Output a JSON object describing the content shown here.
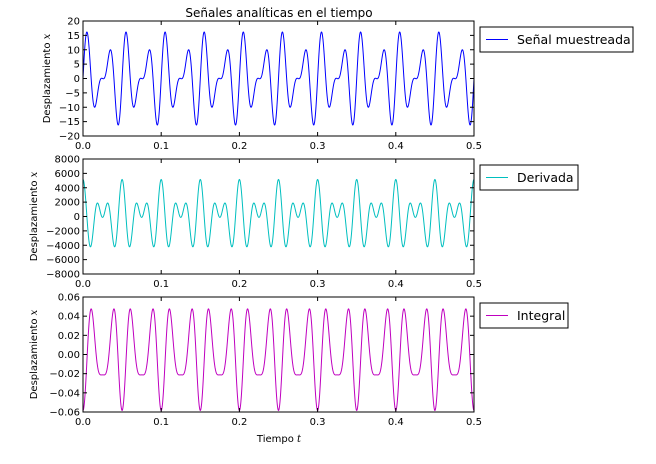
{
  "chart_data": [
    {
      "type": "line",
      "title": "Señales analíticas en el tiempo",
      "ylabel": "Desplazamiento",
      "ylabel_var": "x",
      "xlabel": "",
      "xlim": [
        0.0,
        0.5
      ],
      "ylim": [
        -20,
        20
      ],
      "xticks": [
        0.0,
        0.1,
        0.2,
        0.3,
        0.4,
        0.5
      ],
      "xtick_labels": [
        "0.0",
        "0.1",
        "0.2",
        "0.3",
        "0.4",
        "0.5"
      ],
      "yticks": [
        -20,
        -15,
        -10,
        -5,
        0,
        5,
        10,
        15,
        20
      ],
      "ytick_labels": [
        "−20",
        "−15",
        "−10",
        "−5",
        "0",
        "5",
        "10",
        "15",
        "20"
      ],
      "legend": "outside-right-top",
      "grid": false,
      "series": [
        {
          "name": "Señal muestreada",
          "color": "#0000ff",
          "formula": "10*sin(2*pi*40*t) + 7*sin(2*pi*60*t)",
          "components": [
            [
              10,
              40
            ],
            [
              7,
              60
            ]
          ],
          "kind": "sin"
        }
      ]
    },
    {
      "type": "line",
      "title": "",
      "ylabel": "Desplazamiento",
      "ylabel_var": "x",
      "xlabel": "",
      "xlim": [
        0.0,
        0.5
      ],
      "ylim": [
        -8000,
        8000
      ],
      "xticks": [
        0.0,
        0.1,
        0.2,
        0.3,
        0.4,
        0.5
      ],
      "xtick_labels": [
        "0.0",
        "0.1",
        "0.2",
        "0.3",
        "0.4",
        "0.5"
      ],
      "yticks": [
        -8000,
        -6000,
        -4000,
        -2000,
        0,
        2000,
        4000,
        6000,
        8000
      ],
      "ytick_labels": [
        "−8000",
        "−6000",
        "−4000",
        "−2000",
        "0",
        "2000",
        "4000",
        "6000",
        "8000"
      ],
      "legend": "outside-right-top",
      "grid": false,
      "series": [
        {
          "name": "Derivada",
          "color": "#00bfbf",
          "formula": "derivative of the sampled signal",
          "components": [
            [
              10,
              40
            ],
            [
              7,
              60
            ]
          ],
          "kind": "cos-derivative"
        }
      ]
    },
    {
      "type": "line",
      "title": "",
      "ylabel": "Desplazamiento",
      "ylabel_var": "x",
      "xlabel": "Tiempo",
      "xlabel_var": "t",
      "xlim": [
        0.0,
        0.5
      ],
      "ylim": [
        -0.06,
        0.06
      ],
      "xticks": [
        0.0,
        0.1,
        0.2,
        0.3,
        0.4,
        0.5
      ],
      "xtick_labels": [
        "0.0",
        "0.1",
        "0.2",
        "0.3",
        "0.4",
        "0.5"
      ],
      "yticks": [
        -0.06,
        -0.04,
        -0.02,
        0.0,
        0.02,
        0.04,
        0.06
      ],
      "ytick_labels": [
        "−0.06",
        "−0.04",
        "−0.02",
        "0.00",
        "0.02",
        "0.04",
        "0.06"
      ],
      "legend": "outside-right-top",
      "grid": false,
      "series": [
        {
          "name": "Integral",
          "color": "#bf00bf",
          "formula": "integral of the sampled signal",
          "components": [
            [
              10,
              40
            ],
            [
              7,
              60
            ]
          ],
          "kind": "integral"
        }
      ]
    }
  ]
}
